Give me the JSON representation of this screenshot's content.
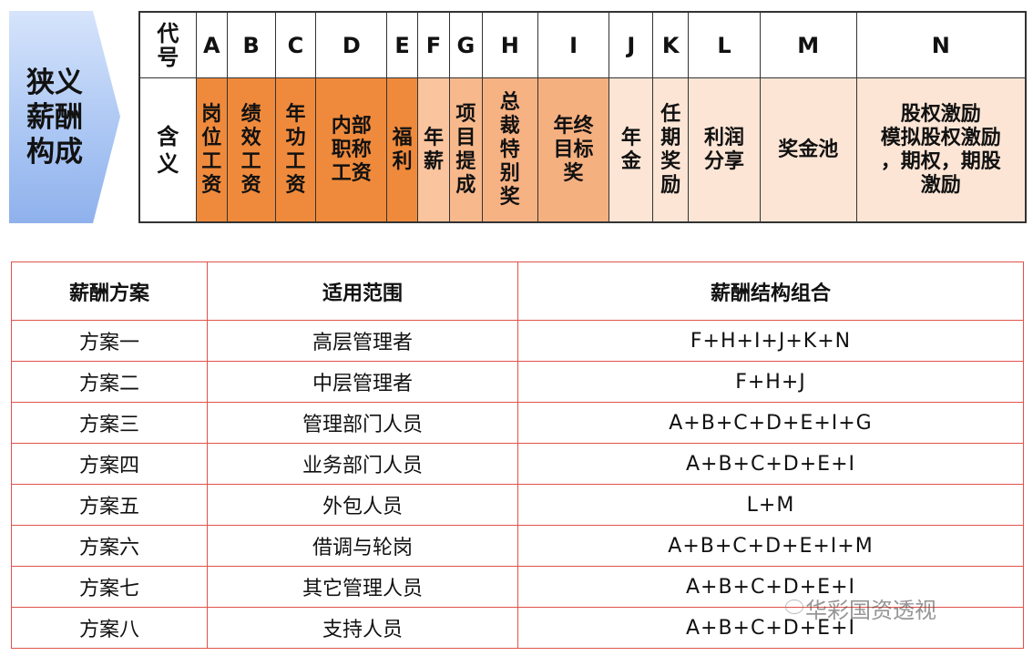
{
  "side_label": "狭义\n薪酬\n构成",
  "structure_table": {
    "code_header": "代\n号",
    "meaning_header": "含\n义",
    "columns": [
      {
        "code": "A",
        "meaning": "岗\n位\n工\n资",
        "color": "#ef8a3c"
      },
      {
        "code": "B",
        "meaning": "绩\n效\n工\n资",
        "color": "#ef8a3c"
      },
      {
        "code": "C",
        "meaning": "年\n功\n工\n资",
        "color": "#ef8a3c"
      },
      {
        "code": "D",
        "meaning": "内部\n职称\n工资",
        "color": "#ef8a3c"
      },
      {
        "code": "E",
        "meaning": "福\n利",
        "color": "#ef8a3c"
      },
      {
        "code": "F",
        "meaning": "年\n薪",
        "color": "#f9c49e"
      },
      {
        "code": "G",
        "meaning": "项\n目\n提\n成",
        "color": "#f7b98c"
      },
      {
        "code": "H",
        "meaning": "总\n裁\n特\n别\n奖",
        "color": "#f7b283"
      },
      {
        "code": "I",
        "meaning": "年终\n目标\n奖",
        "color": "#f5b080"
      },
      {
        "code": "J",
        "meaning": "年\n金",
        "color": "#fce5d5"
      },
      {
        "code": "K",
        "meaning": "任\n期\n奖\n励",
        "color": "#fce5d5"
      },
      {
        "code": "L",
        "meaning": "利润\n分享",
        "color": "#fce5d5"
      },
      {
        "code": "M",
        "meaning": "奖金池",
        "color": "#fce5d5"
      },
      {
        "code": "N",
        "meaning": "股权激励\n模拟股权激励\n，期权，期股\n激励",
        "color": "#fce5d5"
      }
    ]
  },
  "plan_table": {
    "headers": [
      "薪酬方案",
      "适用范围",
      "薪酬结构组合"
    ],
    "rows": [
      [
        "方案一",
        "高层管理者",
        "F+H+I+J+K+N"
      ],
      [
        "方案二",
        "中层管理者",
        "F+H+J"
      ],
      [
        "方案三",
        "管理部门人员",
        "A+B+C+D+E+I+G"
      ],
      [
        "方案四",
        "业务部门人员",
        "A+B+C+D+E+I"
      ],
      [
        "方案五",
        "外包人员",
        "L+M"
      ],
      [
        "方案六",
        "借调与轮岗",
        "A+B+C+D+E+I+M"
      ],
      [
        "方案七",
        "其它管理人员",
        "A+B+C+D+E+I"
      ],
      [
        "方案八",
        "支持人员",
        "A+B+C+D+E+I"
      ]
    ],
    "border_color": "#e0524a"
  },
  "watermark": "华彩国资透视"
}
